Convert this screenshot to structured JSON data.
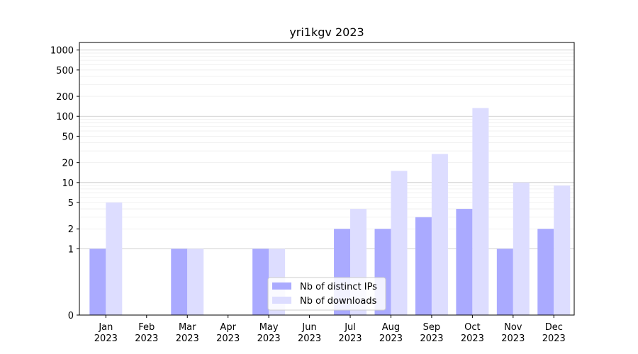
{
  "chart_data": {
    "type": "bar",
    "title": "yri1kgv 2023",
    "xlabel": "",
    "ylabel": "",
    "y_scale": "symlog",
    "ylim": [
      0,
      1300
    ],
    "grid": "horizontal",
    "legend_position": "bottom-center",
    "categories": [
      [
        "Jan",
        "2023"
      ],
      [
        "Feb",
        "2023"
      ],
      [
        "Mar",
        "2023"
      ],
      [
        "Apr",
        "2023"
      ],
      [
        "May",
        "2023"
      ],
      [
        "Jun",
        "2023"
      ],
      [
        "Jul",
        "2023"
      ],
      [
        "Aug",
        "2023"
      ],
      [
        "Sep",
        "2023"
      ],
      [
        "Oct",
        "2023"
      ],
      [
        "Nov",
        "2023"
      ],
      [
        "Dec",
        "2023"
      ]
    ],
    "y_ticks": [
      0,
      1,
      2,
      5,
      10,
      20,
      50,
      100,
      200,
      500,
      1000
    ],
    "series": [
      {
        "name": "Nb of distinct IPs",
        "color": "#aaaaff",
        "values": [
          1,
          0,
          1,
          0,
          1,
          0,
          2,
          2,
          3,
          4,
          1,
          2
        ]
      },
      {
        "name": "Nb of downloads",
        "color": "#ddddff",
        "values": [
          5,
          0,
          1,
          0,
          1,
          0,
          4,
          15,
          27,
          133,
          10,
          9
        ]
      }
    ]
  }
}
